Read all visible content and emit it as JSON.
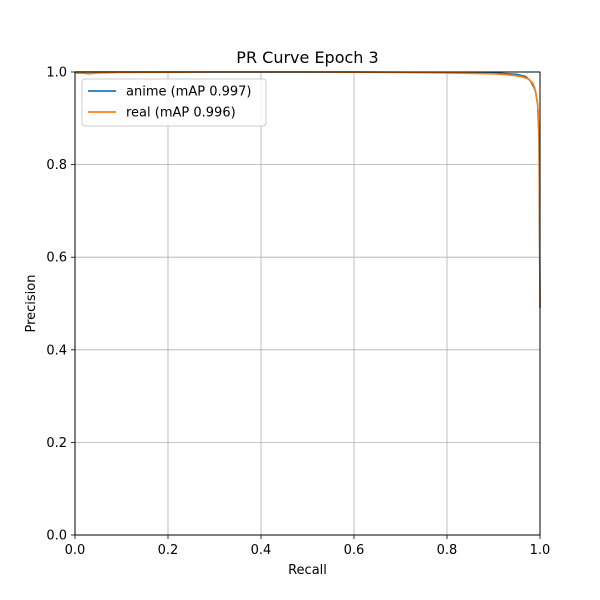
{
  "chart_data": {
    "type": "line",
    "title": "PR Curve Epoch 3",
    "xlabel": "Recall",
    "ylabel": "Precision",
    "xlim": [
      0.0,
      1.0
    ],
    "ylim": [
      0.0,
      1.0
    ],
    "x_ticks": [
      "0.0",
      "0.2",
      "0.4",
      "0.6",
      "0.8",
      "1.0"
    ],
    "y_ticks": [
      "0.0",
      "0.2",
      "0.4",
      "0.6",
      "0.8",
      "1.0"
    ],
    "grid": true,
    "legend_position": "upper-left",
    "series": [
      {
        "name": "anime (mAP 0.997)",
        "color": "#1f77b4",
        "x": [
          0.0,
          0.01,
          0.05,
          0.2,
          0.4,
          0.6,
          0.8,
          0.9,
          0.95,
          0.97,
          0.98,
          0.99,
          0.995,
          0.998,
          1.0
        ],
        "y": [
          1.0,
          1.0,
          1.0,
          1.0,
          1.0,
          1.0,
          0.999,
          0.998,
          0.995,
          0.99,
          0.98,
          0.96,
          0.93,
          0.85,
          0.49
        ]
      },
      {
        "name": "real (mAP 0.996)",
        "color": "#ff7f0e",
        "x": [
          0.0,
          0.005,
          0.01,
          0.03,
          0.05,
          0.1,
          0.3,
          0.5,
          0.7,
          0.8,
          0.9,
          0.94,
          0.96,
          0.975,
          0.985,
          0.99,
          0.995,
          0.998,
          1.0
        ],
        "y": [
          1.0,
          0.997,
          0.998,
          0.996,
          0.998,
          0.999,
          1.0,
          1.0,
          0.999,
          0.998,
          0.996,
          0.993,
          0.99,
          0.985,
          0.975,
          0.96,
          0.93,
          0.86,
          0.49
        ]
      }
    ]
  }
}
